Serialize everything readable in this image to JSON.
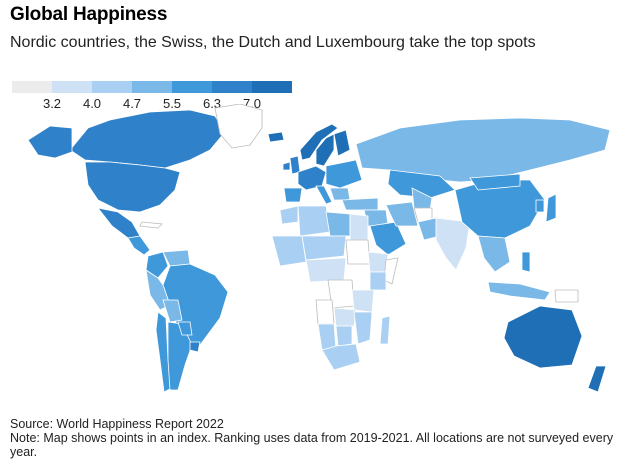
{
  "header": {
    "title": "Global Happiness",
    "subtitle": "Nordic countries, the Swiss, the Dutch and Luxembourg take the top spots"
  },
  "legend": {
    "ticks": [
      "3.2",
      "4.0",
      "4.7",
      "5.5",
      "6.3",
      "7.0"
    ],
    "colors": [
      "#ececec",
      "#cfe2f5",
      "#a9d0f2",
      "#7ab8e8",
      "#3e98d9",
      "#2f82c9",
      "#1e6fb5"
    ]
  },
  "map": {
    "no_data_color": "#ffffff",
    "border_color": "#ffffff",
    "regions": [
      {
        "name": "Canada",
        "tier": 5
      },
      {
        "name": "Alaska",
        "tier": 5
      },
      {
        "name": "Greenland",
        "tier": 0
      },
      {
        "name": "United States",
        "tier": 5
      },
      {
        "name": "Mexico",
        "tier": 5
      },
      {
        "name": "Central America",
        "tier": 4
      },
      {
        "name": "Cuba",
        "tier": 0
      },
      {
        "name": "Colombia",
        "tier": 4
      },
      {
        "name": "Venezuela",
        "tier": 3
      },
      {
        "name": "Brazil",
        "tier": 4
      },
      {
        "name": "Peru",
        "tier": 3
      },
      {
        "name": "Bolivia",
        "tier": 3
      },
      {
        "name": "Chile",
        "tier": 4
      },
      {
        "name": "Argentina",
        "tier": 4
      },
      {
        "name": "Paraguay",
        "tier": 4
      },
      {
        "name": "Uruguay",
        "tier": 5
      },
      {
        "name": "Iceland",
        "tier": 6
      },
      {
        "name": "Norway",
        "tier": 6
      },
      {
        "name": "Sweden",
        "tier": 6
      },
      {
        "name": "Finland",
        "tier": 6
      },
      {
        "name": "United Kingdom",
        "tier": 5
      },
      {
        "name": "Ireland",
        "tier": 5
      },
      {
        "name": "Western Europe",
        "tier": 5
      },
      {
        "name": "Iberia",
        "tier": 4
      },
      {
        "name": "Italy",
        "tier": 4
      },
      {
        "name": "Eastern Europe",
        "tier": 4
      },
      {
        "name": "Balkans",
        "tier": 3
      },
      {
        "name": "Russia",
        "tier": 3
      },
      {
        "name": "Kazakhstan",
        "tier": 4
      },
      {
        "name": "Turkey",
        "tier": 3
      },
      {
        "name": "Middle East",
        "tier": 3
      },
      {
        "name": "Saudi Arabia",
        "tier": 4
      },
      {
        "name": "Iran",
        "tier": 3
      },
      {
        "name": "Central Asia",
        "tier": 3
      },
      {
        "name": "Afghanistan",
        "tier": 0
      },
      {
        "name": "Pakistan",
        "tier": 3
      },
      {
        "name": "India",
        "tier": 1
      },
      {
        "name": "China",
        "tier": 4
      },
      {
        "name": "Mongolia",
        "tier": 4
      },
      {
        "name": "Southeast Asia",
        "tier": 3
      },
      {
        "name": "Japan",
        "tier": 4
      },
      {
        "name": "Korea",
        "tier": 4
      },
      {
        "name": "Indonesia",
        "tier": 3
      },
      {
        "name": "Philippines",
        "tier": 4
      },
      {
        "name": "Morocco",
        "tier": 2
      },
      {
        "name": "Algeria",
        "tier": 2
      },
      {
        "name": "Libya",
        "tier": 3
      },
      {
        "name": "Egypt",
        "tier": 1
      },
      {
        "name": "West Africa",
        "tier": 2
      },
      {
        "name": "Sahel",
        "tier": 2
      },
      {
        "name": "Sudan",
        "tier": 0
      },
      {
        "name": "Ethiopia",
        "tier": 1
      },
      {
        "name": "Somalia",
        "tier": 0
      },
      {
        "name": "Kenya",
        "tier": 2
      },
      {
        "name": "Central Africa",
        "tier": 1
      },
      {
        "name": "DR Congo",
        "tier": 0
      },
      {
        "name": "Tanzania",
        "tier": 1
      },
      {
        "name": "Angola",
        "tier": 0
      },
      {
        "name": "Zambia",
        "tier": 1
      },
      {
        "name": "Namibia",
        "tier": 2
      },
      {
        "name": "Botswana",
        "tier": 2
      },
      {
        "name": "South Africa",
        "tier": 2
      },
      {
        "name": "Mozambique",
        "tier": 2
      },
      {
        "name": "Madagascar",
        "tier": 2
      },
      {
        "name": "Australia",
        "tier": 6
      },
      {
        "name": "New Zealand",
        "tier": 6
      },
      {
        "name": "Papua New Guinea",
        "tier": 0
      }
    ]
  },
  "footer": {
    "source": "Source: World Happiness Report 2022",
    "note": "Note: Map shows points in an index. Ranking uses data from 2019-2021. All locations are not surveyed every year."
  }
}
